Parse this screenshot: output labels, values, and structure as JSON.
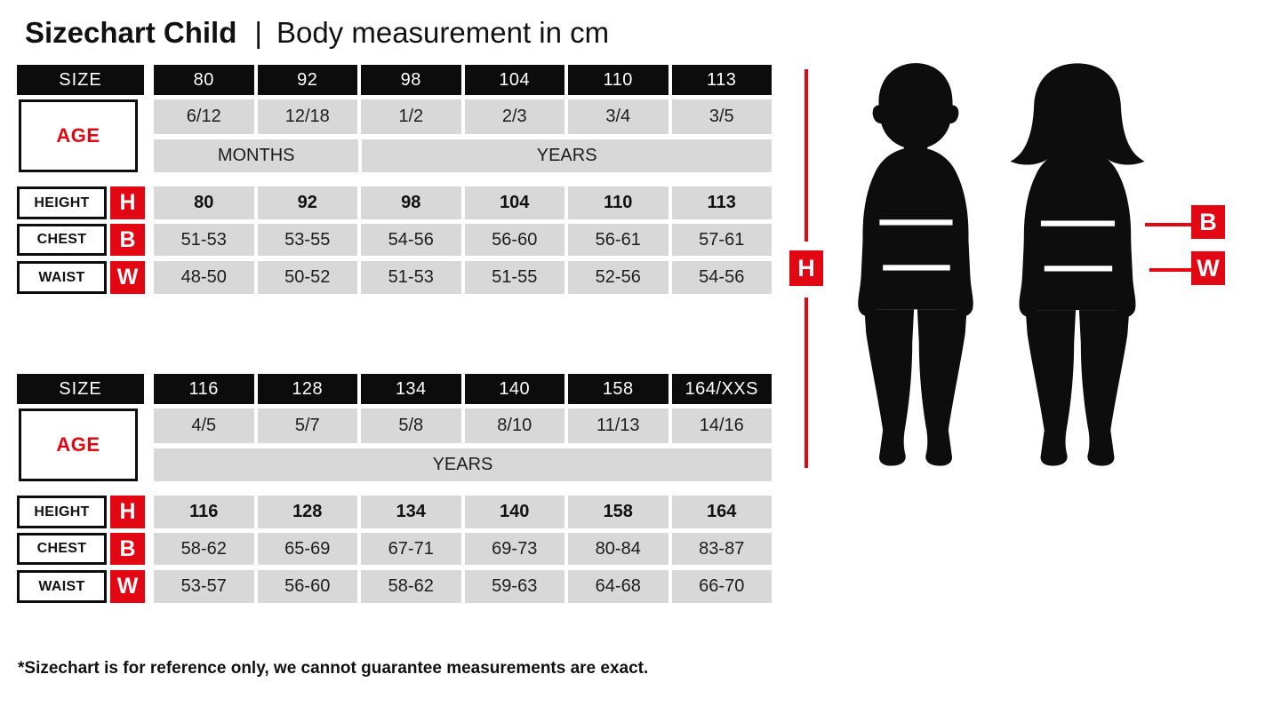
{
  "header": {
    "title_bold": "Sizechart Child",
    "separator": "|",
    "title_regular": "Body measurement in cm"
  },
  "colors": {
    "accent_red": "#e30613",
    "header_black": "#0c0c0c",
    "cell_gray": "#d8d8d8"
  },
  "labels": {
    "size": "SIZE",
    "age": "AGE",
    "height": "HEIGHT",
    "chest": "CHEST",
    "waist": "WAIST",
    "height_letter": "H",
    "chest_letter": "B",
    "waist_letter": "W"
  },
  "tables": [
    {
      "sizes": [
        "80",
        "92",
        "98",
        "104",
        "110",
        "113"
      ],
      "ages": [
        "6/12",
        "12/18",
        "1/2",
        "2/3",
        "3/4",
        "3/5"
      ],
      "units": [
        {
          "label": "MONTHS",
          "span": 2
        },
        {
          "label": "YEARS",
          "span": 4
        }
      ],
      "height": [
        "80",
        "92",
        "98",
        "104",
        "110",
        "113"
      ],
      "chest": [
        "51-53",
        "53-55",
        "54-56",
        "56-60",
        "56-61",
        "57-61"
      ],
      "waist": [
        "48-50",
        "50-52",
        "51-53",
        "51-55",
        "52-56",
        "54-56"
      ]
    },
    {
      "sizes": [
        "116",
        "128",
        "134",
        "140",
        "158",
        "164/XXS"
      ],
      "ages": [
        "4/5",
        "5/7",
        "5/8",
        "8/10",
        "11/13",
        "14/16"
      ],
      "units": [
        {
          "label": "YEARS",
          "span": 6
        }
      ],
      "height": [
        "116",
        "128",
        "134",
        "140",
        "158",
        "164"
      ],
      "chest": [
        "58-62",
        "65-69",
        "67-71",
        "69-73",
        "80-84",
        "83-87"
      ],
      "waist": [
        "53-57",
        "56-60",
        "58-62",
        "59-63",
        "64-68",
        "66-70"
      ]
    }
  ],
  "figure_key": {
    "height_letter": "H",
    "chest_letter": "B",
    "waist_letter": "W"
  },
  "footer": {
    "note": "*Sizechart is for reference only, we cannot guarantee measurements are exact."
  }
}
